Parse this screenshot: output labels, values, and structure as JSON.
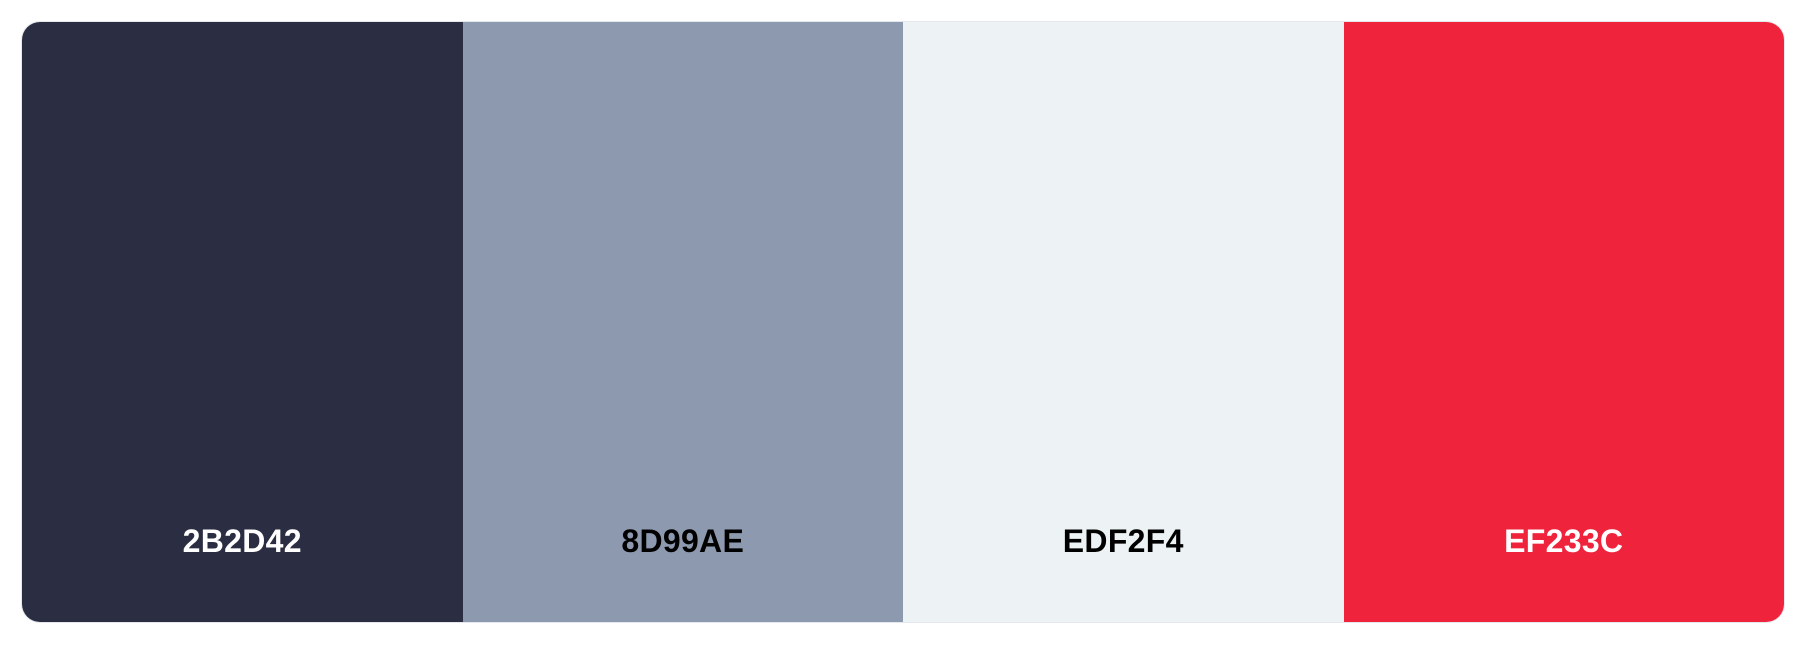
{
  "palette": {
    "swatches": [
      {
        "hex": "2B2D42",
        "color": "#2B2D42",
        "text_color": "#FFFFFF"
      },
      {
        "hex": "8D99AE",
        "color": "#8D99AE",
        "text_color": "#000000"
      },
      {
        "hex": "EDF2F4",
        "color": "#EDF2F4",
        "text_color": "#000000"
      },
      {
        "hex": "EF233C",
        "color": "#EF233C",
        "text_color": "#FFFFFF"
      }
    ]
  }
}
